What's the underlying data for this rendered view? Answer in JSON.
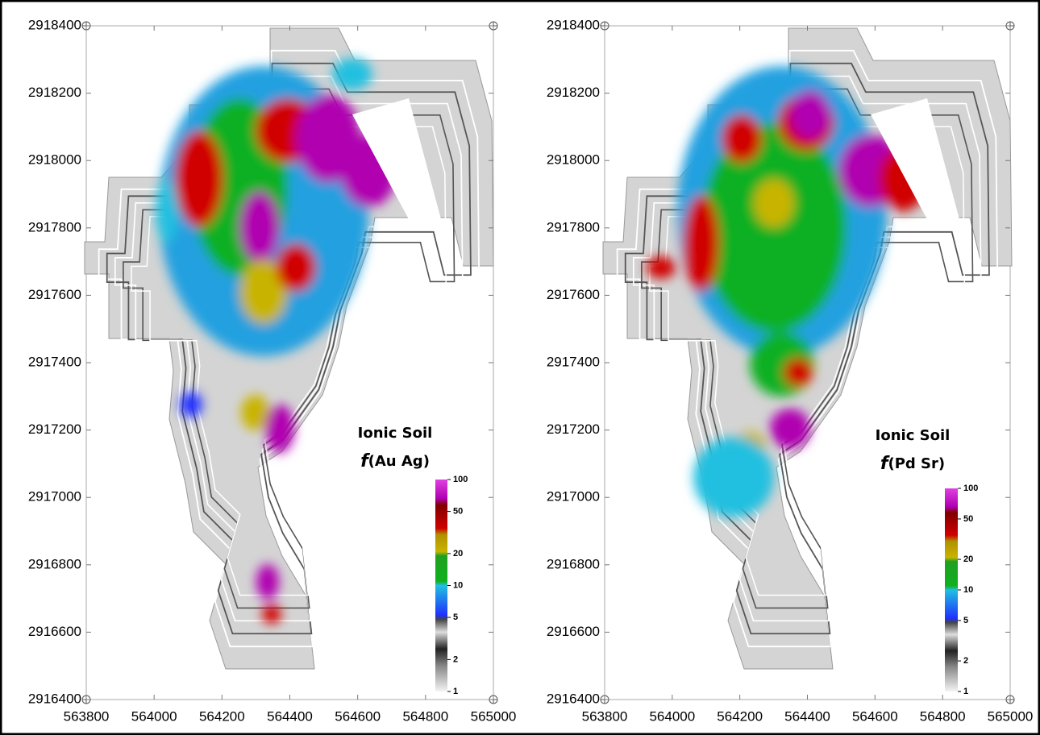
{
  "panels": [
    {
      "title": "Ionic Soil",
      "formula_symbol": "f",
      "formula_args": "(Au Ag)",
      "xlim": [
        563800,
        565000
      ],
      "xticks": [
        563800,
        564000,
        564200,
        564400,
        564600,
        564800,
        565000
      ],
      "ylim": [
        2916400,
        2918400
      ],
      "yticks": [
        2916400,
        2916600,
        2916800,
        2917000,
        2917200,
        2917400,
        2917600,
        2917800,
        2918000,
        2918200,
        2918400
      ],
      "colorbar": {
        "scale": "log",
        "lim": [
          1,
          100
        ],
        "ticks": [
          1,
          2,
          5,
          10,
          20,
          50,
          100
        ]
      }
    },
    {
      "title": "Ionic Soil",
      "formula_symbol": "f",
      "formula_args": "(Pd Sr)",
      "xlim": [
        563800,
        565000
      ],
      "xticks": [
        563800,
        564000,
        564200,
        564400,
        564600,
        564800,
        565000
      ],
      "ylim": [
        2916400,
        2918400
      ],
      "yticks": [
        2916400,
        2916600,
        2916800,
        2917000,
        2917200,
        2917400,
        2917600,
        2917800,
        2918000,
        2918200,
        2918400
      ],
      "colorbar": {
        "scale": "log",
        "lim": [
          1,
          100
        ],
        "ticks": [
          1,
          2,
          5,
          10,
          20,
          50,
          100
        ]
      }
    }
  ]
}
